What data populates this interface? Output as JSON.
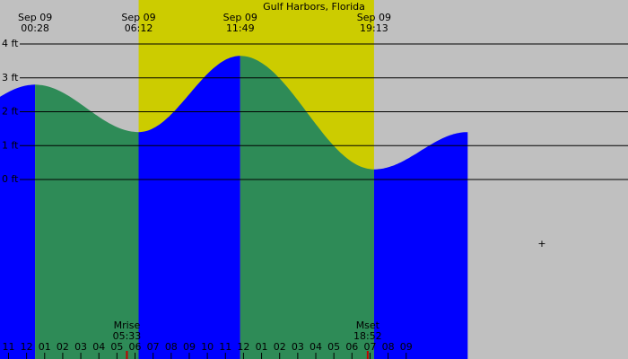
{
  "chart_data": {
    "type": "area",
    "title": "Gulf Harbors, Florida",
    "y_unit": "ft",
    "ylim": [
      -5.3,
      5.3
    ],
    "xlim_hours": [
      -1.47,
      33.27
    ],
    "y_ticks": [
      {
        "value": 0,
        "label": "0 ft"
      },
      {
        "value": 1,
        "label": "1 ft"
      },
      {
        "value": 2,
        "label": "2 ft"
      },
      {
        "value": 3,
        "label": "3 ft"
      },
      {
        "value": 4,
        "label": "4 ft"
      }
    ],
    "daylight": {
      "start_hour": 6.2,
      "end_hour": 19.22
    },
    "extremes": [
      {
        "date": "Sep 09",
        "time": "00:28",
        "hour": 0.47,
        "height": 2.8,
        "type": "high"
      },
      {
        "date": "Sep 09",
        "time": "06:12",
        "hour": 6.2,
        "height": 1.4,
        "type": "low"
      },
      {
        "date": "Sep 09",
        "time": "11:49",
        "hour": 11.82,
        "height": 3.65,
        "type": "high"
      },
      {
        "date": "Sep 09",
        "time": "19:13",
        "hour": 19.22,
        "height": 0.3,
        "type": "low"
      }
    ],
    "curve_end": {
      "hour": 24.4,
      "height": 1.4
    },
    "x_ticks": [
      {
        "hour": -1,
        "label": "11"
      },
      {
        "hour": 0,
        "label": "12"
      },
      {
        "hour": 1,
        "label": "01"
      },
      {
        "hour": 2,
        "label": "02"
      },
      {
        "hour": 3,
        "label": "03"
      },
      {
        "hour": 4,
        "label": "04"
      },
      {
        "hour": 5,
        "label": "05"
      },
      {
        "hour": 6,
        "label": "06"
      },
      {
        "hour": 7,
        "label": "07"
      },
      {
        "hour": 8,
        "label": "08"
      },
      {
        "hour": 9,
        "label": "09"
      },
      {
        "hour": 10,
        "label": "10"
      },
      {
        "hour": 11,
        "label": "11"
      },
      {
        "hour": 12,
        "label": "12"
      },
      {
        "hour": 13,
        "label": "01"
      },
      {
        "hour": 14,
        "label": "02"
      },
      {
        "hour": 15,
        "label": "03"
      },
      {
        "hour": 16,
        "label": "04"
      },
      {
        "hour": 17,
        "label": "05"
      },
      {
        "hour": 18,
        "label": "06"
      },
      {
        "hour": 19,
        "label": "07"
      },
      {
        "hour": 20,
        "label": "08"
      },
      {
        "hour": 21,
        "label": "09"
      }
    ],
    "moon_events": [
      {
        "label": "Mrise",
        "time": "05:33",
        "hour": 5.55
      },
      {
        "label": "Mset",
        "time": "18:52",
        "hour": 18.87
      }
    ],
    "colors": {
      "background": "#c0c0c0",
      "daylight": "#cccc00",
      "rising": "#0000ff",
      "falling": "#2e8b57",
      "moon_tick": "#c00000"
    }
  }
}
